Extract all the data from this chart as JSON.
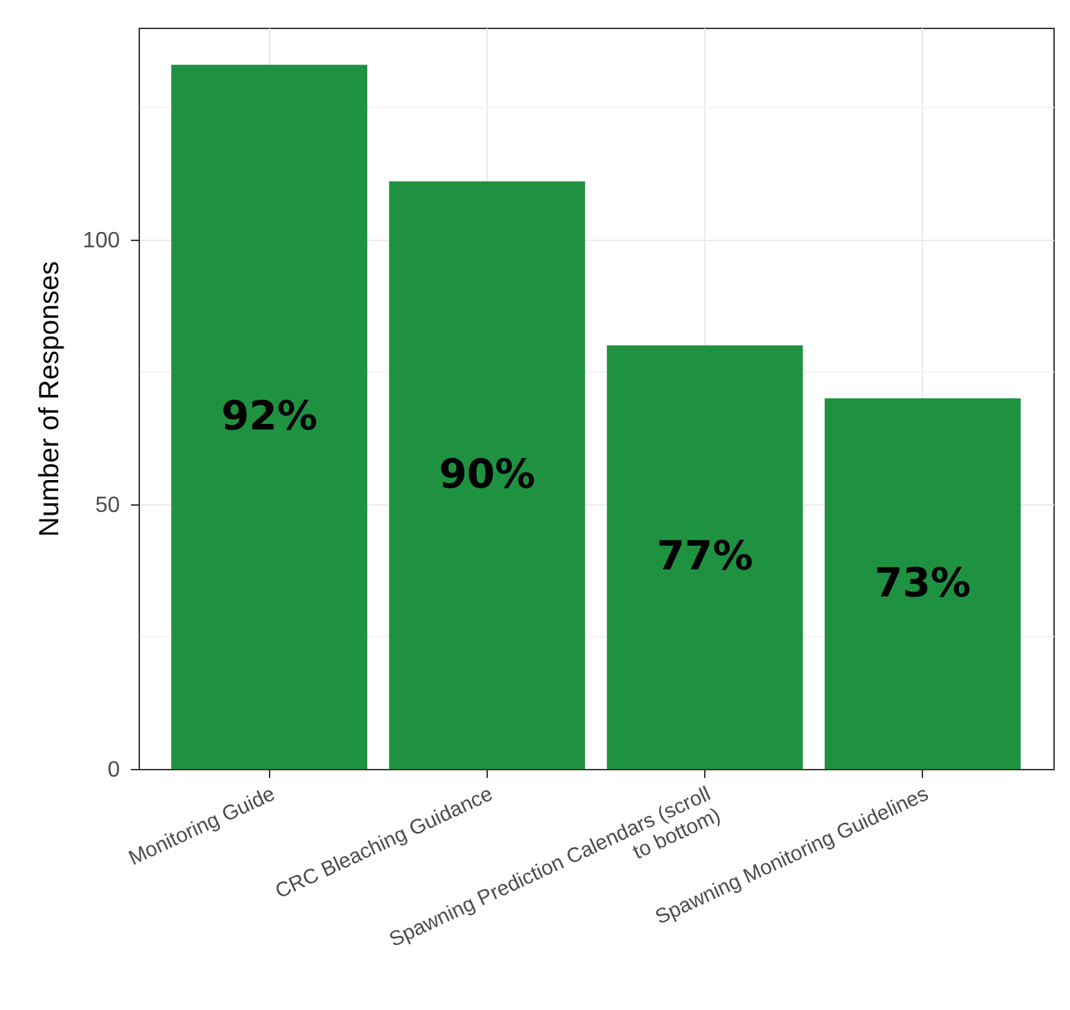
{
  "chart_data": {
    "type": "bar",
    "categories": [
      "Monitoring Guide",
      "CRC Bleaching Guidance",
      "Spawning Prediction Calendars (scroll\nto bottom)",
      "Spawning Monitoring Guidelines"
    ],
    "values": [
      133,
      111,
      80,
      70
    ],
    "color": "#1f9242",
    "annotations": [
      "92%",
      "90%",
      "77%",
      "73%"
    ],
    "ylabel": "Number of Responses",
    "ylim": [
      0,
      140
    ],
    "yticks": [
      0,
      {
        "value": 25,
        "label": null
      },
      50,
      {
        "value": 75,
        "label": null
      },
      100,
      {
        "value": 125,
        "label": null
      }
    ],
    "grid": true
  }
}
